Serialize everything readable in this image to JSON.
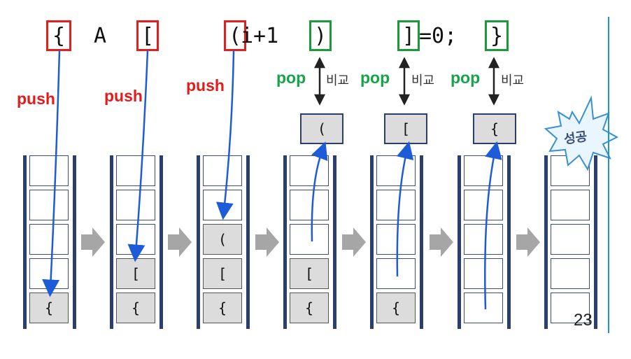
{
  "code": {
    "brace_open": "{",
    "a": "A",
    "bracket_open": "[",
    "paren_open": "(",
    "i_plus_1": "i+1",
    "paren_close": ")",
    "bracket_close": "]",
    "assign_zero": "=0;",
    "brace_close": "}"
  },
  "labels": {
    "push": "push",
    "pop": "pop",
    "compare": "비교"
  },
  "popped": [
    "(",
    "[",
    "{"
  ],
  "stacks": [
    [
      "{",
      "",
      "",
      "",
      ""
    ],
    [
      "{",
      "[",
      "",
      "",
      ""
    ],
    [
      "{",
      "[",
      "(",
      "",
      ""
    ],
    [
      "{",
      "[",
      "",
      "",
      ""
    ],
    [
      "{",
      "",
      "",
      "",
      ""
    ],
    [
      "",
      "",
      "",
      "",
      ""
    ],
    [
      "",
      "",
      "",
      "",
      ""
    ]
  ],
  "success_label": "성공",
  "page_number": "23",
  "colors": {
    "push": "#e21b1b",
    "pop": "#17a34a",
    "arrow": "#1e5bd8",
    "stack_border": "#2a3f6e"
  }
}
